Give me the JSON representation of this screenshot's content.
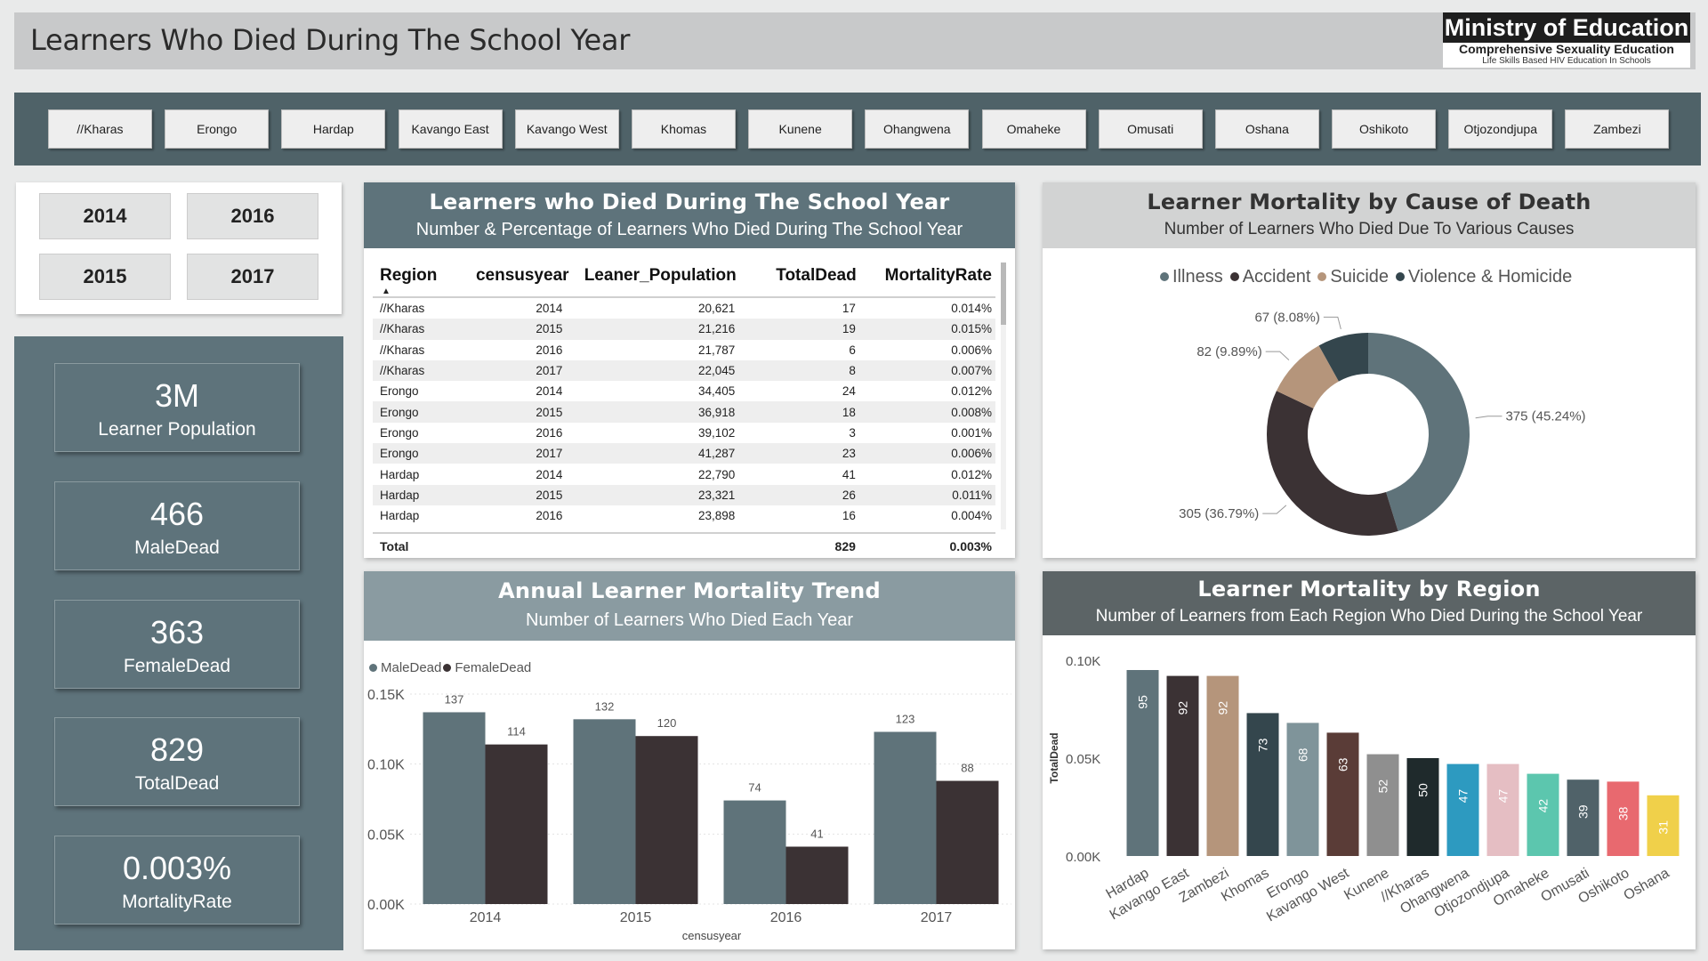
{
  "header": {
    "title": "Learners Who Died During The School Year",
    "logo_title": "Ministry of Education",
    "logo_line1": "Comprehensive Sexuality Education",
    "logo_line2": "Life Skills Based HIV Education In Schools"
  },
  "regions": [
    "//Kharas",
    "Erongo",
    "Hardap",
    "Kavango East",
    "Kavango West",
    "Khomas",
    "Kunene",
    "Ohangwena",
    "Omaheke",
    "Omusati",
    "Oshana",
    "Oshikoto",
    "Otjozondjupa",
    "Zambezi"
  ],
  "years": [
    "2014",
    "2016",
    "2015",
    "2017"
  ],
  "kpis": [
    {
      "value": "3M",
      "label": "Learner Population"
    },
    {
      "value": "466",
      "label": "MaleDead"
    },
    {
      "value": "363",
      "label": "FemaleDead"
    },
    {
      "value": "829",
      "label": "TotalDead"
    },
    {
      "value": "0.003%",
      "label": "MortalityRate"
    }
  ],
  "table": {
    "title": "Learners who Died During The School Year",
    "subtitle": "Number & Percentage of Learners Who Died During The School Year",
    "columns": [
      "Region",
      "censusyear",
      "Leaner_Population",
      "TotalDead",
      "MortalityRate"
    ],
    "rows": [
      [
        "//Kharas",
        "2014",
        "20,621",
        "17",
        "0.014%"
      ],
      [
        "//Kharas",
        "2015",
        "21,216",
        "19",
        "0.015%"
      ],
      [
        "//Kharas",
        "2016",
        "21,787",
        "6",
        "0.006%"
      ],
      [
        "//Kharas",
        "2017",
        "22,045",
        "8",
        "0.007%"
      ],
      [
        "Erongo",
        "2014",
        "34,405",
        "24",
        "0.012%"
      ],
      [
        "Erongo",
        "2015",
        "36,918",
        "18",
        "0.008%"
      ],
      [
        "Erongo",
        "2016",
        "39,102",
        "3",
        "0.001%"
      ],
      [
        "Erongo",
        "2017",
        "41,287",
        "23",
        "0.006%"
      ],
      [
        "Hardap",
        "2014",
        "22,790",
        "41",
        "0.012%"
      ],
      [
        "Hardap",
        "2015",
        "23,321",
        "26",
        "0.011%"
      ],
      [
        "Hardap",
        "2016",
        "23,898",
        "16",
        "0.004%"
      ]
    ],
    "total": {
      "label": "Total",
      "dead": "829",
      "rate": "0.003%"
    }
  },
  "donut": {
    "title": "Learner Mortality by Cause of Death",
    "subtitle": "Number of Learners Who Died Due To Various Causes"
  },
  "trend": {
    "title": "Annual Learner Mortality Trend",
    "subtitle": "Number of Learners Who Died Each Year"
  },
  "region_chart": {
    "title": "Learner Mortality by Region",
    "subtitle": "Number of Learners from Each Region Who Died During the School Year"
  },
  "colors": {
    "slate": "#5f737a",
    "dark": "#3b3234",
    "tan": "#b5957b",
    "charcoal": "#34464d"
  },
  "chart_data": [
    {
      "type": "pie",
      "categories": [
        "Illness",
        "Accident",
        "Suicide",
        "Violence & Homicide"
      ],
      "values": [
        375,
        305,
        82,
        67
      ],
      "labels": [
        "375 (45.24%)",
        "305 (36.79%)",
        "82 (9.89%)",
        "67 (8.08%)"
      ],
      "colors": [
        "#5f737a",
        "#3b3234",
        "#b5957b",
        "#34464d"
      ],
      "legend": "top"
    },
    {
      "type": "bar",
      "categories": [
        "2014",
        "2015",
        "2016",
        "2017"
      ],
      "series": [
        {
          "name": "MaleDead",
          "values": [
            137,
            132,
            74,
            123
          ],
          "color": "#5f737a"
        },
        {
          "name": "FemaleDead",
          "values": [
            114,
            120,
            41,
            88
          ],
          "color": "#3b3234"
        }
      ],
      "xlabel": "censusyear",
      "ylabel": "",
      "yticks": [
        "0.00K",
        "0.05K",
        "0.10K",
        "0.15K"
      ],
      "ylim": [
        0,
        150
      ],
      "legend": "top-left"
    },
    {
      "type": "bar",
      "categories": [
        "Hardap",
        "Kavango East",
        "Zambezi",
        "Khomas",
        "Erongo",
        "Kavango West",
        "Kunene",
        "//Kharas",
        "Ohangwena",
        "Otjozondjupa",
        "Omaheke",
        "Omusati",
        "Oshikoto",
        "Oshana"
      ],
      "values": [
        95,
        92,
        92,
        73,
        68,
        63,
        52,
        50,
        47,
        47,
        42,
        39,
        38,
        31
      ],
      "colors": [
        "#5f737a",
        "#3b3234",
        "#b5957b",
        "#34464d",
        "#7f949a",
        "#5a3c37",
        "#8f8f8f",
        "#1f2a2c",
        "#2d9ac0",
        "#e5bec3",
        "#5cc6ae",
        "#506269",
        "#e8696f",
        "#f0d04a"
      ],
      "xlabel": "",
      "ylabel": "TotalDead",
      "yticks": [
        "0.00K",
        "0.05K",
        "0.10K"
      ],
      "ylim": [
        0,
        100
      ]
    }
  ]
}
